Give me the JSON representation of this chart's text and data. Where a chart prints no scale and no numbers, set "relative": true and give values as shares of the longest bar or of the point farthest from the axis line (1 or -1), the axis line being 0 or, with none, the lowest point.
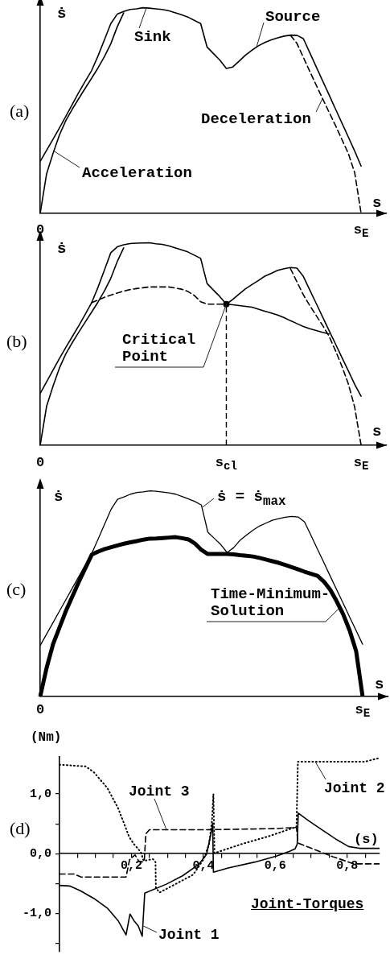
{
  "chart_data": [
    {
      "type": "line",
      "title": "(a)",
      "xlabel": "s",
      "ylabel": "ṡ",
      "relative": true,
      "categories": [
        "0",
        null,
        null,
        null,
        null,
        null,
        null,
        null,
        null,
        null,
        null,
        null,
        null,
        null,
        null,
        null,
        null,
        null,
        null,
        null,
        null,
        null,
        null,
        null,
        null,
        null,
        null,
        null,
        null,
        null,
        null,
        null,
        null,
        null,
        null,
        null,
        null,
        null,
        null,
        null,
        null,
        null,
        null,
        null,
        null,
        null,
        null,
        null,
        null,
        null,
        "s$_{E}$",
        null,
        null,
        null,
        null
      ],
      "annotations": [
        "Sink",
        "Source"
      ],
      "series": [
        {
          "color": "#000000",
          "values": [
            0.253,
            0.307,
            0.361,
            0.416,
            0.472,
            0.53,
            0.588,
            0.642,
            0.694,
            0.765,
            0.844,
            0.923,
            0.969,
            0.982,
            0.992,
            0.995,
            1.0,
            0.998,
            0.995,
            0.992,
            0.986,
            0.976,
            0.966,
            0.955,
            0.939,
            0.923,
            0.809,
            0.777,
            0.745,
            0.705,
            0.712,
            0.741,
            0.77,
            0.794,
            0.815,
            0.831,
            0.844,
            0.854,
            0.862,
            0.867,
            0.866,
            0.85,
            0.782,
            0.713,
            0.645,
            0.577,
            0.508,
            0.44,
            0.372,
            0.303,
            0.23,
            null,
            null,
            null,
            null
          ]
        },
        {
          "name": "Acceleration",
          "color": "#000000",
          "values": [
            0,
            0.193,
            0.292,
            0.382,
            0.452,
            0.507,
            0.558,
            0.608,
            0.657,
            0.707,
            0.762,
            0.825,
            0.907,
            0.975,
            null,
            null,
            null,
            null,
            null,
            null,
            null,
            null,
            null,
            null,
            null,
            null,
            null,
            null,
            null,
            null,
            null,
            null,
            null,
            null,
            null,
            null,
            null,
            null,
            null,
            null,
            null,
            null,
            null,
            null,
            null,
            null,
            null,
            null,
            null,
            null,
            null,
            null,
            null,
            null,
            null
          ]
        },
        {
          "name": "Deceleration",
          "color": "#000000",
          "line_style": "dashed",
          "values": [
            null,
            null,
            null,
            null,
            null,
            null,
            null,
            null,
            null,
            null,
            null,
            null,
            null,
            null,
            null,
            null,
            null,
            null,
            null,
            null,
            null,
            null,
            null,
            null,
            null,
            null,
            null,
            null,
            null,
            null,
            null,
            null,
            null,
            null,
            null,
            null,
            null,
            null,
            null,
            0.866,
            0.827,
            0.759,
            0.691,
            0.624,
            0.558,
            0.493,
            0.428,
            0.36,
            0.292,
            0.198,
            0,
            null,
            null,
            null,
            null
          ]
        }
      ]
    },
    {
      "type": "line",
      "title": "(b)",
      "xlabel": "s",
      "ylabel": "ṡ",
      "relative": true,
      "categories": [
        "0",
        null,
        null,
        null,
        null,
        null,
        null,
        null,
        null,
        null,
        null,
        null,
        null,
        null,
        null,
        null,
        null,
        null,
        null,
        null,
        null,
        null,
        null,
        null,
        null,
        null,
        null,
        null,
        null,
        "s$_{cl}$",
        null,
        null,
        null,
        null,
        null,
        null,
        null,
        null,
        null,
        null,
        null,
        null,
        null,
        null,
        null,
        null,
        null,
        null,
        null,
        null,
        "s$_{E}$",
        null,
        null,
        null,
        null
      ],
      "annotations": [
        "Critical Point"
      ],
      "series": [
        {
          "color": "#000000",
          "values": [
            0.256,
            0.314,
            0.371,
            0.429,
            0.484,
            0.537,
            0.59,
            0.646,
            0.703,
            0.78,
            0.865,
            0.951,
            0.98,
            0.99,
            0.996,
            0.998,
            0.999,
            1.0,
            0.995,
            0.992,
            0.985,
            0.975,
            0.965,
            0.955,
            0.939,
            0.923,
            0.799,
            0.766,
            0.734,
            0.697,
            0.72,
            0.747,
            0.773,
            0.794,
            0.814,
            0.835,
            0.849,
            0.864,
            0.872,
            0.878,
            0.875,
            0.834,
            0.767,
            0.701,
            0.634,
            0.567,
            0.501,
            0.434,
            0.368,
            0.301,
            0.242,
            null,
            null,
            null,
            null
          ]
        },
        {
          "color": "#000000",
          "values": [
            0,
            0.193,
            0.292,
            0.382,
            0.452,
            0.507,
            0.558,
            0.608,
            0.657,
            0.707,
            0.762,
            0.825,
            0.907,
            0.975,
            null,
            null,
            null,
            null,
            null,
            null,
            null,
            null,
            null,
            null,
            null,
            null,
            null,
            null,
            null,
            null,
            null,
            null,
            null,
            null,
            null,
            null,
            null,
            null,
            null,
            null,
            null,
            null,
            null,
            null,
            null,
            null,
            null,
            null,
            null,
            null,
            null,
            null,
            null,
            null,
            null
          ]
        },
        {
          "color": "#000000",
          "line_style": "dashed",
          "values": [
            null,
            null,
            null,
            null,
            null,
            null,
            null,
            null,
            null,
            null,
            null,
            null,
            null,
            null,
            null,
            null,
            null,
            null,
            null,
            null,
            null,
            null,
            null,
            null,
            null,
            null,
            null,
            null,
            null,
            null,
            null,
            null,
            null,
            null,
            null,
            null,
            null,
            null,
            null,
            0.872,
            0.807,
            0.743,
            0.69,
            0.641,
            0.592,
            0.539,
            0.468,
            0.391,
            0.304,
            0.188,
            0,
            null,
            null,
            null,
            null
          ]
        },
        {
          "color": "#000000",
          "line_style": "dashed",
          "values": [
            null,
            null,
            null,
            null,
            null,
            null,
            null,
            null,
            0.704,
            0.717,
            0.731,
            0.742,
            0.752,
            0.761,
            0.769,
            0.774,
            0.778,
            0.782,
            0.782,
            0.782,
            0.782,
            0.777,
            0.771,
            0.76,
            0.74,
            0.709,
            0.697,
            0.697,
            0.697,
            0.697,
            null,
            null,
            null,
            null,
            null,
            null,
            null,
            null,
            null,
            null,
            null,
            null,
            null,
            null,
            null,
            null,
            null,
            null,
            null,
            null,
            null,
            null,
            null,
            null,
            null
          ]
        },
        {
          "color": "#000000",
          "values": [
            null,
            null,
            null,
            null,
            null,
            null,
            null,
            null,
            null,
            null,
            null,
            null,
            null,
            null,
            null,
            null,
            null,
            null,
            null,
            null,
            null,
            null,
            null,
            null,
            null,
            null,
            null,
            null,
            null,
            0.697,
            0.694,
            0.69,
            0.686,
            0.682,
            0.672,
            0.662,
            0.653,
            0.643,
            0.63,
            0.615,
            0.601,
            0.587,
            0.576,
            0.567,
            0.558,
            0.55,
            null,
            null,
            null,
            null,
            null,
            null,
            null,
            null,
            null
          ]
        },
        {
          "type": "lollipop",
          "marker": "circle",
          "line_style": "dashed",
          "color": "#000000",
          "values": [
            null,
            null,
            null,
            null,
            null,
            null,
            null,
            null,
            null,
            null,
            null,
            null,
            null,
            null,
            null,
            null,
            null,
            null,
            null,
            null,
            null,
            null,
            null,
            null,
            null,
            null,
            null,
            null,
            null,
            0.697,
            null,
            null,
            null,
            null,
            null,
            null,
            null,
            null,
            null,
            null,
            null,
            null,
            null,
            null,
            null,
            null,
            null,
            null,
            null,
            null,
            null,
            null,
            null,
            null,
            null
          ]
        }
      ]
    },
    {
      "type": "line",
      "title": "(c)",
      "xlabel": "s",
      "ylabel": "ṡ",
      "relative": true,
      "categories": [
        "0",
        null,
        null,
        null,
        null,
        null,
        null,
        null,
        null,
        null,
        null,
        null,
        null,
        null,
        null,
        null,
        null,
        null,
        null,
        null,
        null,
        null,
        null,
        null,
        null,
        null,
        null,
        null,
        null,
        null,
        null,
        null,
        null,
        null,
        null,
        null,
        null,
        null,
        null,
        null,
        null,
        null,
        null,
        null,
        null,
        null,
        null,
        null,
        null,
        null,
        "s$_{E}$",
        null,
        null,
        null,
        null
      ],
      "series": [
        {
          "name": "ṡ = ṡ$_{max}$",
          "color": "#000000",
          "values": [
            0.248,
            0.304,
            0.36,
            0.416,
            0.472,
            0.528,
            0.584,
            0.64,
            0.696,
            0.767,
            0.839,
            0.911,
            0.959,
            0.971,
            0.984,
            0.992,
            0.995,
            1.0,
            0.998,
            0.994,
            0.99,
            0.984,
            0.973,
            0.961,
            0.948,
            0.931,
            0.799,
            0.769,
            0.739,
            0.7,
            0.724,
            0.76,
            0.785,
            0.809,
            0.829,
            0.843,
            0.857,
            0.865,
            0.872,
            0.876,
            0.873,
            0.849,
            0.783,
            0.717,
            0.651,
            0.584,
            0.518,
            0.452,
            0.386,
            0.32,
            0.254,
            null,
            null,
            null,
            null
          ]
        },
        {
          "name": "Time-Minimum-Solution",
          "color": "#000000",
          "values": [
            0,
            0.14,
            0.255,
            0.336,
            0.417,
            0.488,
            0.558,
            0.624,
            0.69,
            0.705,
            0.717,
            0.726,
            0.735,
            0.743,
            0.75,
            0.756,
            0.763,
            0.768,
            0.769,
            0.771,
            0.773,
            0.775,
            0.77,
            0.764,
            0.744,
            0.713,
            0.693,
            0.693,
            0.693,
            0.693,
            0.691,
            0.687,
            0.684,
            0.681,
            0.674,
            0.666,
            0.658,
            0.65,
            0.64,
            0.629,
            0.618,
            0.607,
            0.597,
            0.587,
            0.559,
            0.518,
            0.462,
            0.399,
            0.32,
            0.22,
            0,
            null,
            null,
            null,
            null
          ]
        }
      ]
    },
    {
      "type": "line",
      "title": "(d)",
      "xlabel": "(s)",
      "ylabel": "(Nm)",
      "xlim": [
        0,
        0.89
      ],
      "ylim": [
        -1.64,
        1.62
      ],
      "xticks": [
        {
          "value": 0.05,
          "label": null
        },
        {
          "value": 0.1,
          "label": null
        },
        {
          "value": 0.15,
          "label": null
        },
        {
          "value": 0.2,
          "label": "0,2"
        },
        {
          "value": 0.25,
          "label": null
        },
        {
          "value": 0.3,
          "label": null
        },
        {
          "value": 0.35,
          "label": null
        },
        {
          "value": 0.4,
          "label": "0,4"
        },
        {
          "value": 0.45,
          "label": null
        },
        {
          "value": 0.5,
          "label": null
        },
        {
          "value": 0.55,
          "label": null
        },
        {
          "value": 0.6,
          "label": "0,6"
        },
        {
          "value": 0.65,
          "label": null
        },
        {
          "value": 0.7,
          "label": null
        },
        {
          "value": 0.75,
          "label": null
        },
        {
          "value": 0.8,
          "label": "0,8"
        },
        {
          "value": 0.85,
          "label": null
        }
      ],
      "yticks": [
        {
          "value": -1.5,
          "label": null
        },
        {
          "value": -1,
          "label": "-1,0"
        },
        {
          "value": -0.5,
          "label": null
        },
        {
          "value": 0,
          "label": "0,0"
        },
        {
          "value": 0.5,
          "label": null
        },
        {
          "value": 1,
          "label": "1,0"
        }
      ],
      "annotations": [
        "Joint-Torques"
      ],
      "series": [
        {
          "name": "Joint 1",
          "color": "#000000",
          "x": [
            0,
            0.028,
            0.058,
            0.096,
            0.133,
            0.163,
            0.185,
            0.196,
            0.207,
            0.219,
            0.23,
            0.237,
            0.297,
            0.342,
            0.387,
            0.409,
            0.424,
            0.426,
            0.428,
            0.469,
            0.543,
            0.603,
            0.64,
            0.655,
            0.661,
            0.664,
            0.693,
            0.73,
            0.767,
            0.804,
            0.834,
            0.89
          ],
          "values": [
            -0.53,
            -0.54,
            -0.62,
            -0.75,
            -0.91,
            -1.12,
            -1.36,
            -1.01,
            -1.12,
            -1.21,
            -1.38,
            -0.66,
            -0.51,
            -0.37,
            -0.18,
            -0.01,
            0.42,
            0.51,
            -0.31,
            -0.24,
            -0.14,
            -0.04,
            0.04,
            0.08,
            0.16,
            0.68,
            0.55,
            0.4,
            0.25,
            0.12,
            0.09,
            0.09
          ]
        },
        {
          "name": "Joint 2",
          "color": "#000000",
          "line_style": "dotted",
          "x": [
            0,
            0.073,
            0.096,
            0.133,
            0.163,
            0.185,
            0.193,
            0.207,
            0.226,
            0.234,
            0.26,
            0.267,
            0.268,
            0.278,
            0.319,
            0.372,
            0.401,
            0.416,
            0.424,
            0.428,
            0.431,
            0.506,
            0.581,
            0.659,
            0.663,
            0.849,
            0.89
          ],
          "values": [
            1.49,
            1.46,
            1.36,
            1.1,
            0.76,
            0.42,
            0.29,
            0.16,
            0.03,
            -0.12,
            -0.09,
            -0.14,
            -0.57,
            -0.65,
            -0.52,
            -0.35,
            -0.09,
            0.16,
            0.55,
            1.0,
            0.01,
            0.16,
            0.29,
            0.45,
            1.54,
            1.54,
            1.6
          ]
        },
        {
          "name": "Joint 3",
          "color": "#000000",
          "line_style": "dashed",
          "x": [
            0,
            0.04,
            0.06,
            0.1,
            0.185,
            0.195,
            0.21,
            0.22,
            0.232,
            0.236,
            0.24,
            0.25,
            0.4,
            0.5,
            0.6,
            0.659,
            0.663,
            0.76,
            0.819,
            0.89
          ],
          "values": [
            -0.34,
            -0.34,
            -0.39,
            -0.39,
            -0.39,
            -0.1,
            -0.02,
            -0.12,
            -0.14,
            -0.1,
            0.33,
            0.4,
            0.4,
            0.41,
            0.42,
            0.44,
            0.18,
            -0.05,
            -0.17,
            -0.17
          ]
        }
      ]
    }
  ]
}
